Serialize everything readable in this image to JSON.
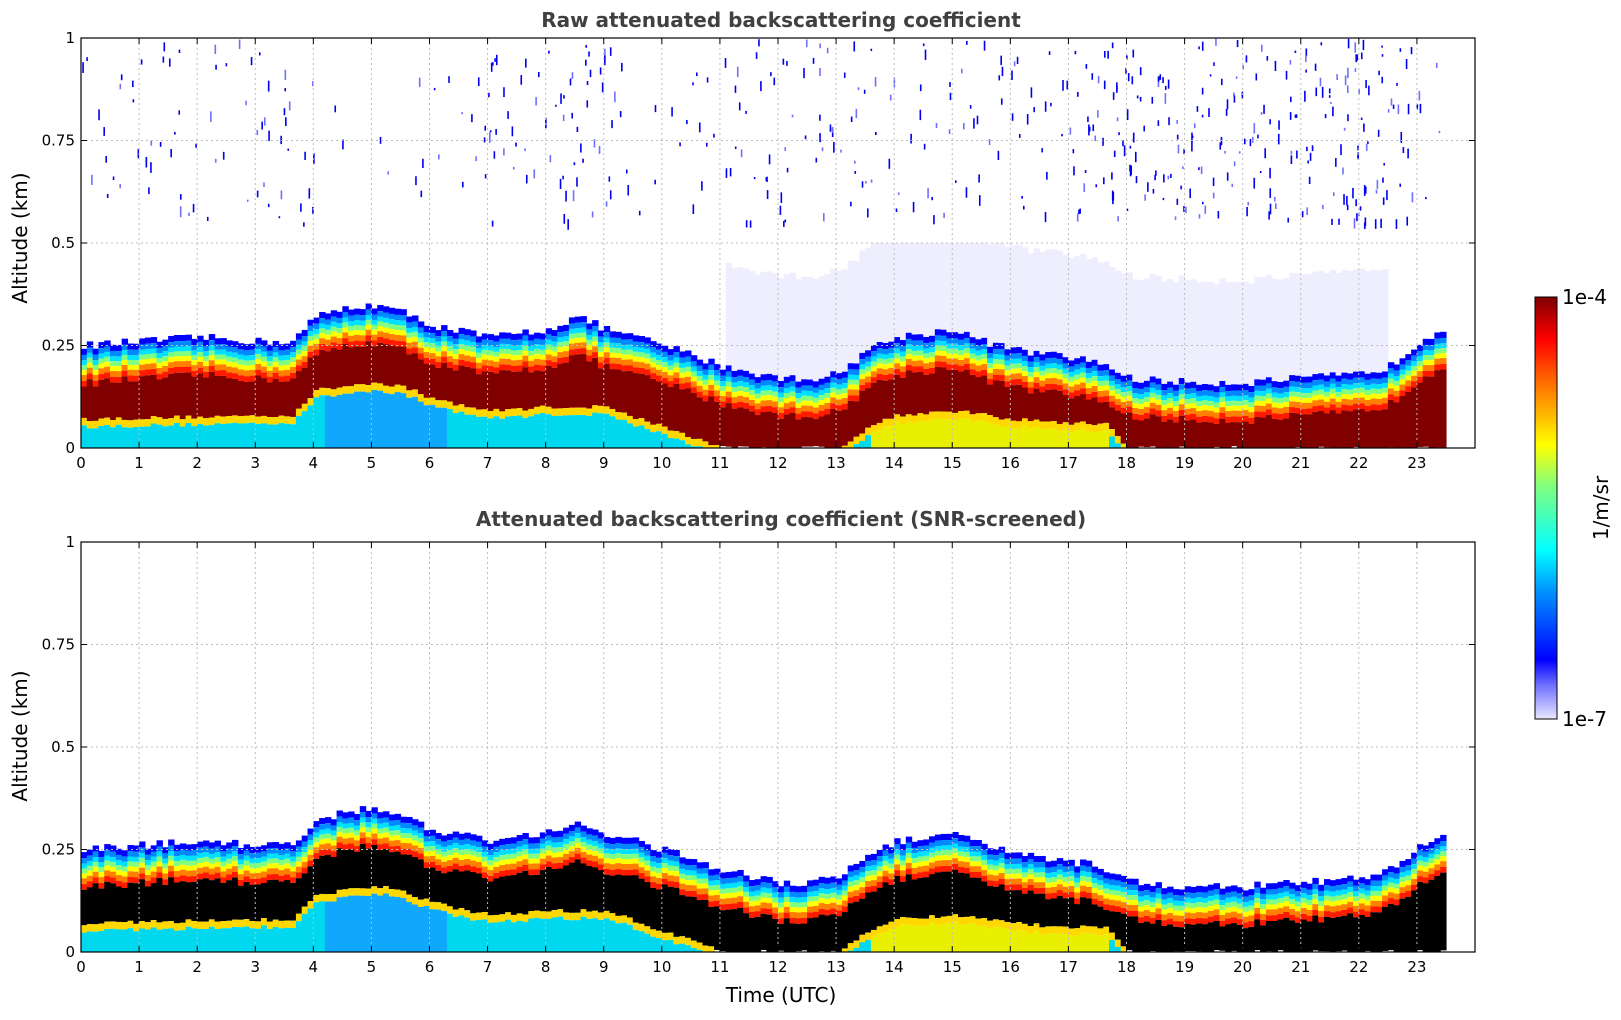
{
  "chart_data": [
    {
      "type": "heatmap",
      "id": "raw",
      "title": "Raw attenuated backscattering coefficient",
      "xlabel": "",
      "ylabel": "Altitude (km)",
      "xlim": [
        0,
        24
      ],
      "ylim": [
        0,
        1
      ],
      "x_ticks": [
        "0",
        "1",
        "2",
        "3",
        "4",
        "5",
        "6",
        "7",
        "8",
        "9",
        "10",
        "11",
        "12",
        "13",
        "14",
        "15",
        "16",
        "17",
        "18",
        "19",
        "20",
        "21",
        "22",
        "23"
      ],
      "y_ticks": [
        "0",
        "0.25",
        "0.5",
        "0.75",
        "1"
      ],
      "grid": true,
      "data_end_hour": 23.5,
      "layer_top_km": {
        "hours": [
          0,
          1,
          2,
          3,
          3.6,
          4,
          4.5,
          5,
          5.5,
          6,
          7,
          8,
          8.5,
          9,
          10,
          11,
          12,
          12.5,
          13,
          13.5,
          14,
          14.5,
          15,
          15.5,
          16,
          17,
          17.5,
          18,
          19,
          20,
          21,
          22,
          22.5,
          23,
          23.5
        ],
        "values": [
          0.25,
          0.26,
          0.27,
          0.26,
          0.26,
          0.32,
          0.34,
          0.35,
          0.33,
          0.3,
          0.27,
          0.29,
          0.32,
          0.29,
          0.25,
          0.2,
          0.17,
          0.17,
          0.18,
          0.24,
          0.27,
          0.28,
          0.29,
          0.26,
          0.24,
          0.22,
          0.21,
          0.17,
          0.16,
          0.16,
          0.17,
          0.18,
          0.2,
          0.26,
          0.3
        ]
      },
      "dense_base_km": {
        "hours": [
          0,
          3.6,
          4,
          5,
          5.5,
          6,
          7,
          8,
          9,
          10,
          11,
          12,
          12.5,
          13,
          13.5,
          14,
          15,
          16,
          17,
          17.6,
          18,
          23.5
        ],
        "values": [
          0.07,
          0.08,
          0.14,
          0.16,
          0.15,
          0.12,
          0.09,
          0.1,
          0.1,
          0.05,
          0.0,
          0.0,
          0.0,
          0.0,
          0.05,
          0.08,
          0.09,
          0.07,
          0.06,
          0.06,
          0.0,
          0.0
        ]
      }
    },
    {
      "type": "heatmap",
      "id": "screened",
      "title": "Attenuated backscattering coefficient (SNR-screened)",
      "xlabel": "Time (UTC)",
      "ylabel": "Altitude (km)",
      "xlim": [
        0,
        24
      ],
      "ylim": [
        0,
        1
      ],
      "x_ticks": [
        "0",
        "1",
        "2",
        "3",
        "4",
        "5",
        "6",
        "7",
        "8",
        "9",
        "10",
        "11",
        "12",
        "13",
        "14",
        "15",
        "16",
        "17",
        "18",
        "19",
        "20",
        "21",
        "22",
        "23"
      ],
      "y_ticks": [
        "0",
        "0.25",
        "0.5",
        "0.75",
        "1"
      ],
      "grid": true,
      "data_end_hour": 23.5,
      "screened_color": "#000000"
    }
  ],
  "colorbar": {
    "label": "1/m/sr",
    "max_label": "1e-4",
    "min_label": "1e-7",
    "scale": "log",
    "range": [
      1e-07,
      0.0001
    ],
    "colormap": "jet"
  }
}
